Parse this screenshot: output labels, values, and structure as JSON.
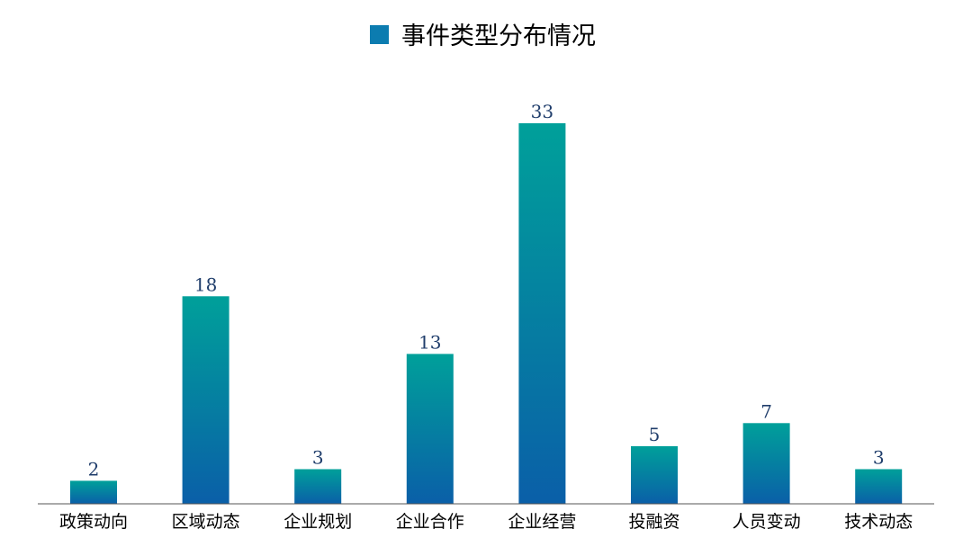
{
  "chart_data": {
    "type": "bar",
    "title": "事件类型分布情况",
    "legend": {
      "label": "事件类型分布情况",
      "position": "top-center"
    },
    "categories": [
      "政策动向",
      "区域动态",
      "企业规划",
      "企业合作",
      "企业经营",
      "投融资",
      "人员变动",
      "技术动态"
    ],
    "series": [
      {
        "name": "事件类型分布情况",
        "values": [
          2,
          18,
          3,
          13,
          33,
          5,
          7,
          3
        ]
      }
    ],
    "ylim": [
      0,
      33
    ],
    "xlabel": "",
    "ylabel": "",
    "grid": false,
    "colors": {
      "bar_top": "#00a09a",
      "bar_bottom": "#0a5fa8",
      "legend_swatch": "#0c7cb0",
      "value_label": "#1f3d6b",
      "axis": "#555555"
    }
  }
}
